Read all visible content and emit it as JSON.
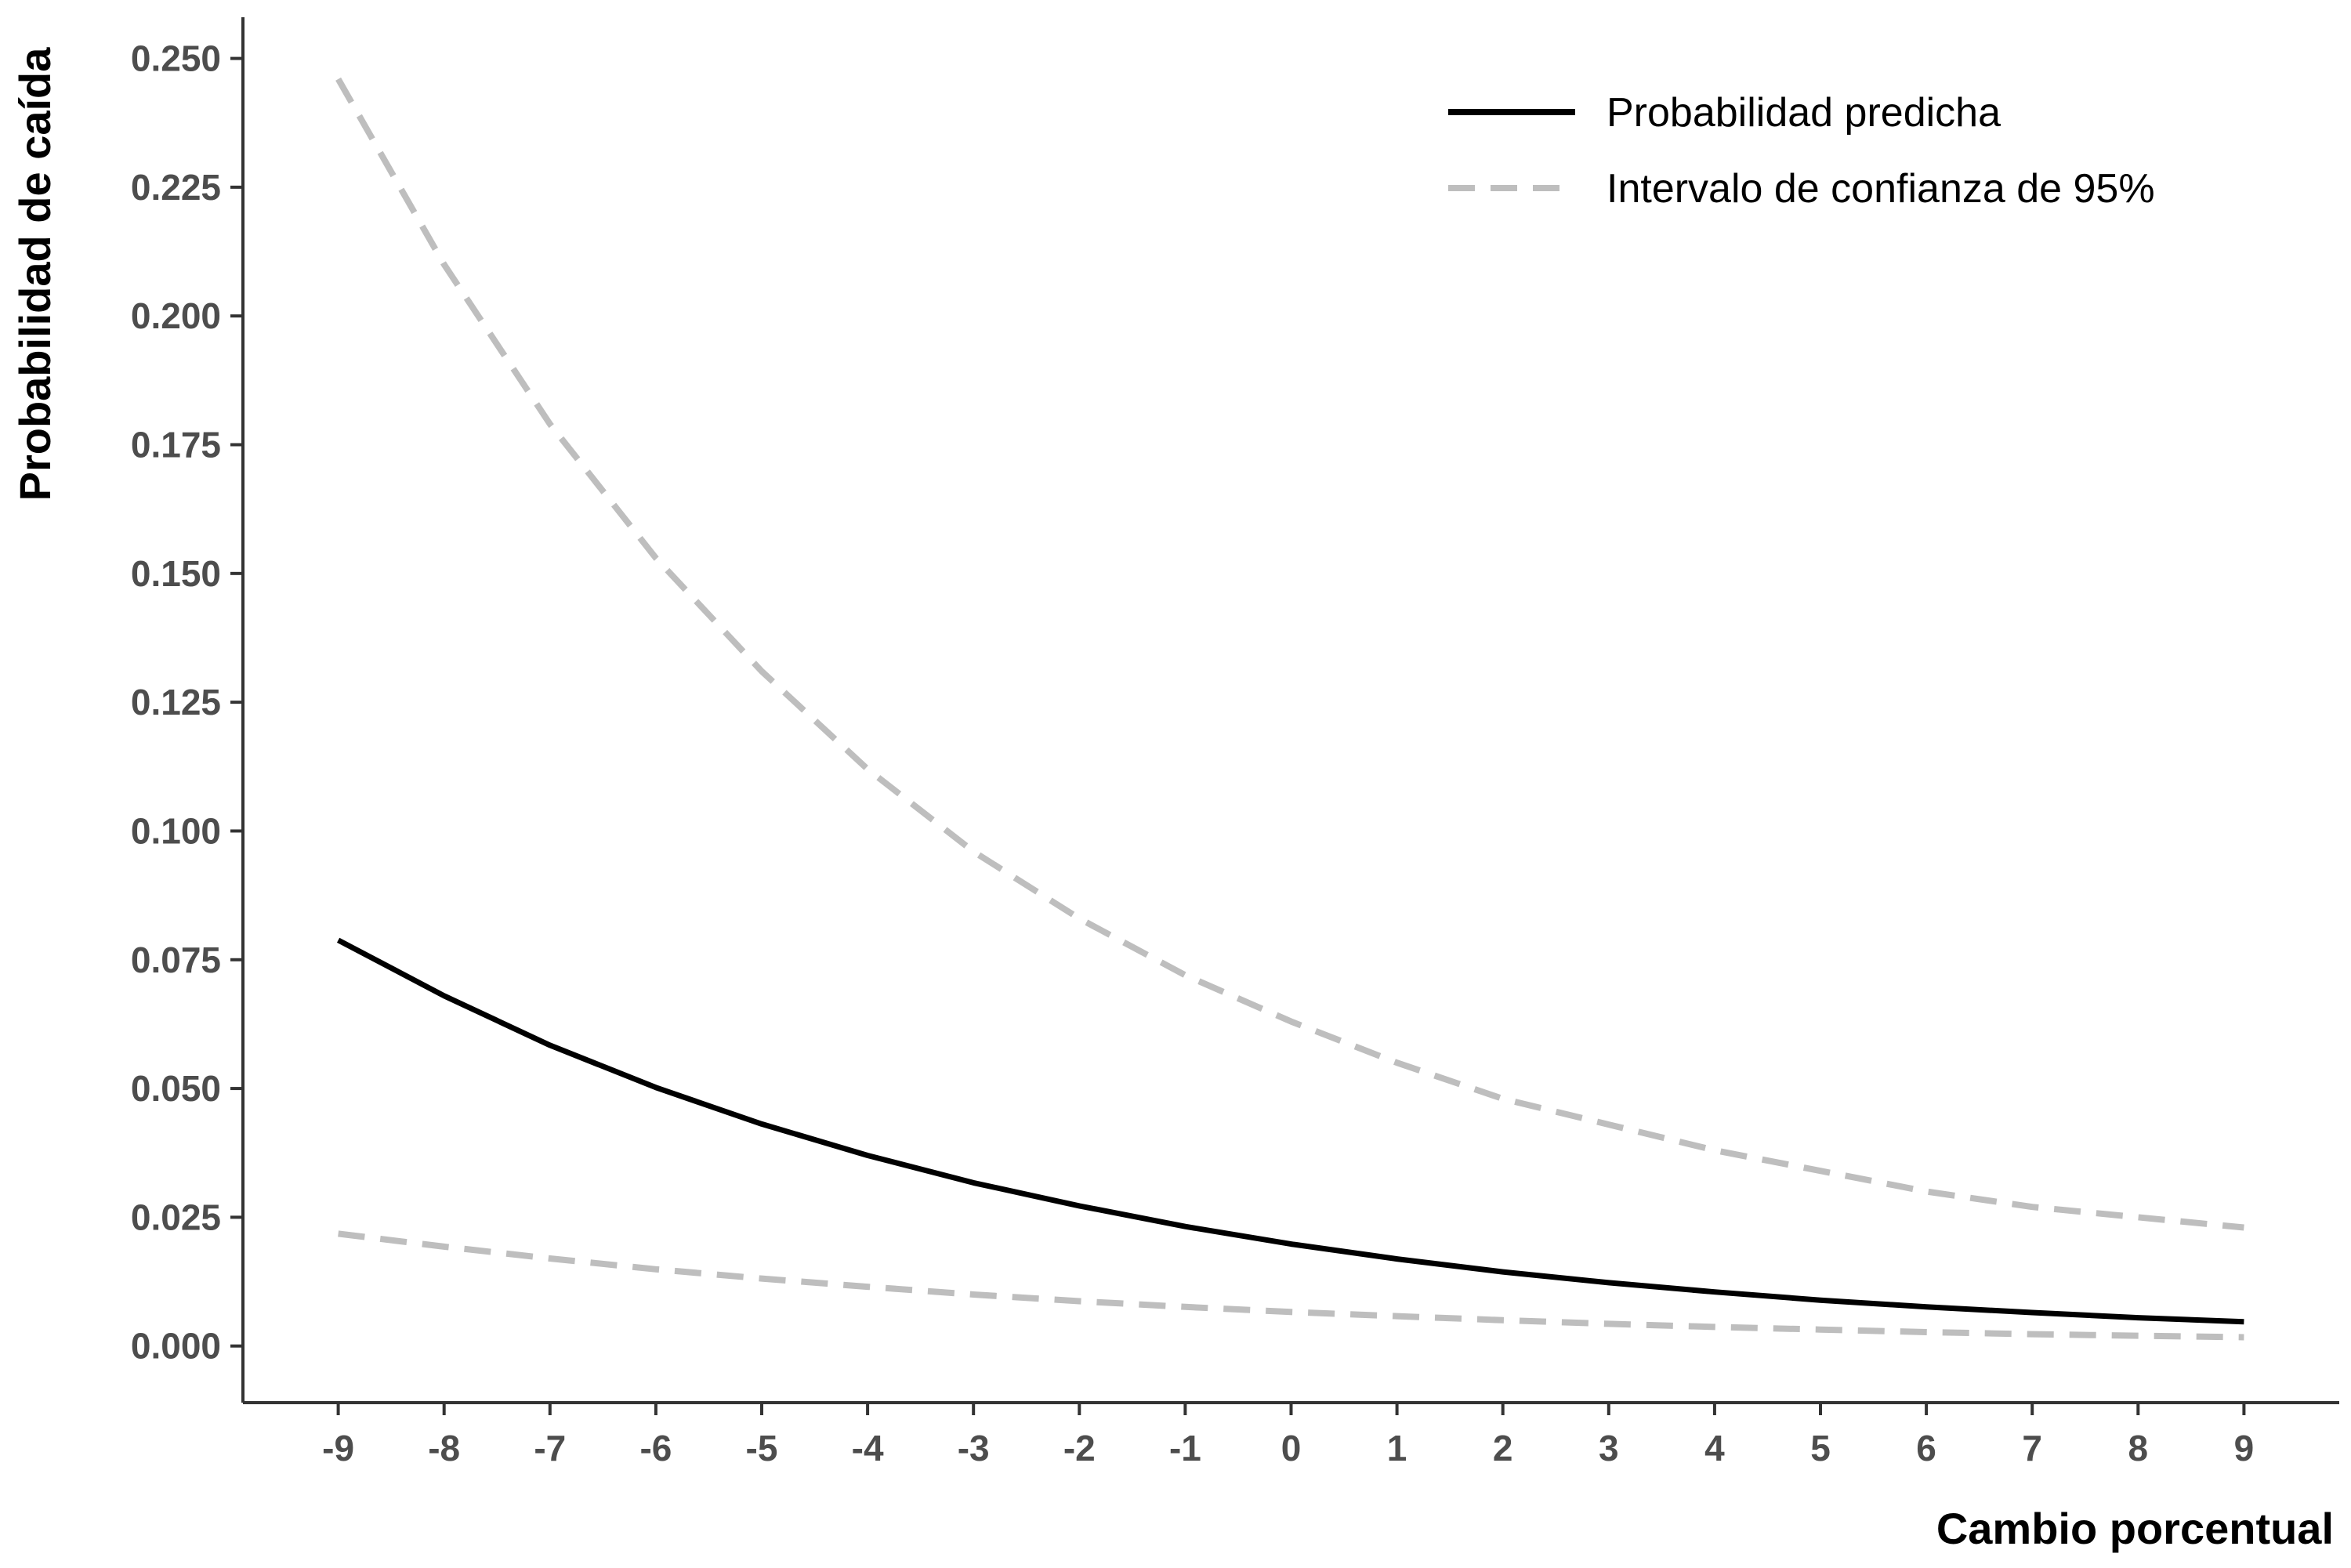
{
  "chart_data": {
    "type": "line",
    "title": "",
    "xlabel": "Cambio porcentual",
    "ylabel": "Probabilidad de caída",
    "x": [
      -9,
      -8,
      -7,
      -6,
      -5,
      -4,
      -3,
      -2,
      -1,
      0,
      1,
      2,
      3,
      4,
      5,
      6,
      7,
      8,
      9
    ],
    "xlim": [
      -9.9,
      9.9
    ],
    "ylim": [
      -0.011,
      0.258
    ],
    "x_ticks": [
      -9,
      -8,
      -7,
      -6,
      -5,
      -4,
      -3,
      -2,
      -1,
      0,
      1,
      2,
      3,
      4,
      5,
      6,
      7,
      8,
      9
    ],
    "x_tick_labels": [
      "-9",
      "-8",
      "-7",
      "-6",
      "-5",
      "-4",
      "-3",
      "-2",
      "-1",
      "0",
      "1",
      "2",
      "3",
      "4",
      "5",
      "6",
      "7",
      "8",
      "9"
    ],
    "y_ticks": [
      0,
      0.025,
      0.05,
      0.075,
      0.1,
      0.125,
      0.15,
      0.175,
      0.2,
      0.225,
      0.25
    ],
    "y_tick_labels": [
      "0.000",
      "0.025",
      "0.050",
      "0.075",
      "0.100",
      "0.125",
      "0.150",
      "0.175",
      "0.200",
      "0.225",
      "0.250"
    ],
    "grid": false,
    "legend_position": "top-right",
    "series": [
      {
        "name": "Probabilidad predicha",
        "style": "solid",
        "color": "#000000",
        "values": [
          0.0788,
          0.068,
          0.0584,
          0.0502,
          0.0431,
          0.037,
          0.0317,
          0.0272,
          0.0232,
          0.0198,
          0.0169,
          0.0144,
          0.0123,
          0.0105,
          0.0089,
          0.0076,
          0.0065,
          0.0055,
          0.0047
        ]
      },
      {
        "name": "Intervalo de confianza de 95%",
        "style": "dashed",
        "color": "#bebebe",
        "values": [
          0.246,
          0.21,
          0.179,
          0.153,
          0.131,
          0.112,
          0.096,
          0.083,
          0.072,
          0.063,
          0.055,
          0.048,
          0.043,
          0.038,
          0.034,
          0.03,
          0.027,
          0.025,
          0.023
        ]
      },
      {
        "style": "dashed",
        "color": "#bebebe",
        "values": [
          0.0218,
          0.0193,
          0.017,
          0.0149,
          0.0131,
          0.0115,
          0.01,
          0.0087,
          0.0076,
          0.0066,
          0.0058,
          0.005,
          0.0043,
          0.0037,
          0.0032,
          0.0027,
          0.0023,
          0.002,
          0.0017
        ]
      }
    ]
  }
}
